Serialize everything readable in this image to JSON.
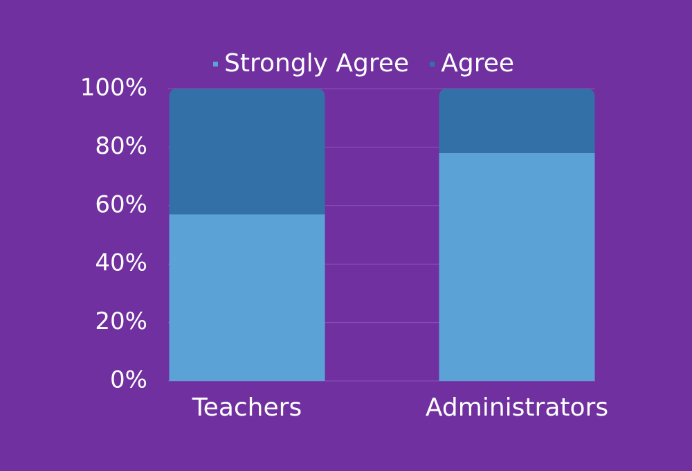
{
  "chart_data": {
    "type": "stacked_bar",
    "categories": [
      "Teachers",
      "Administrators"
    ],
    "series": [
      {
        "name": "Strongly Agree",
        "color": "#5ba3d6",
        "values": [
          57,
          78
        ]
      },
      {
        "name": "Agree",
        "color": "#3470a8",
        "values": [
          43,
          22
        ]
      }
    ],
    "ylim": [
      0,
      100
    ],
    "yticks": [
      {
        "value": 0,
        "label": "0%"
      },
      {
        "value": 20,
        "label": "20%"
      },
      {
        "value": 40,
        "label": "40%"
      },
      {
        "value": 60,
        "label": "60%"
      },
      {
        "value": 80,
        "label": "80%"
      },
      {
        "value": 100,
        "label": "100%"
      }
    ],
    "grid": true,
    "legend": "top"
  }
}
